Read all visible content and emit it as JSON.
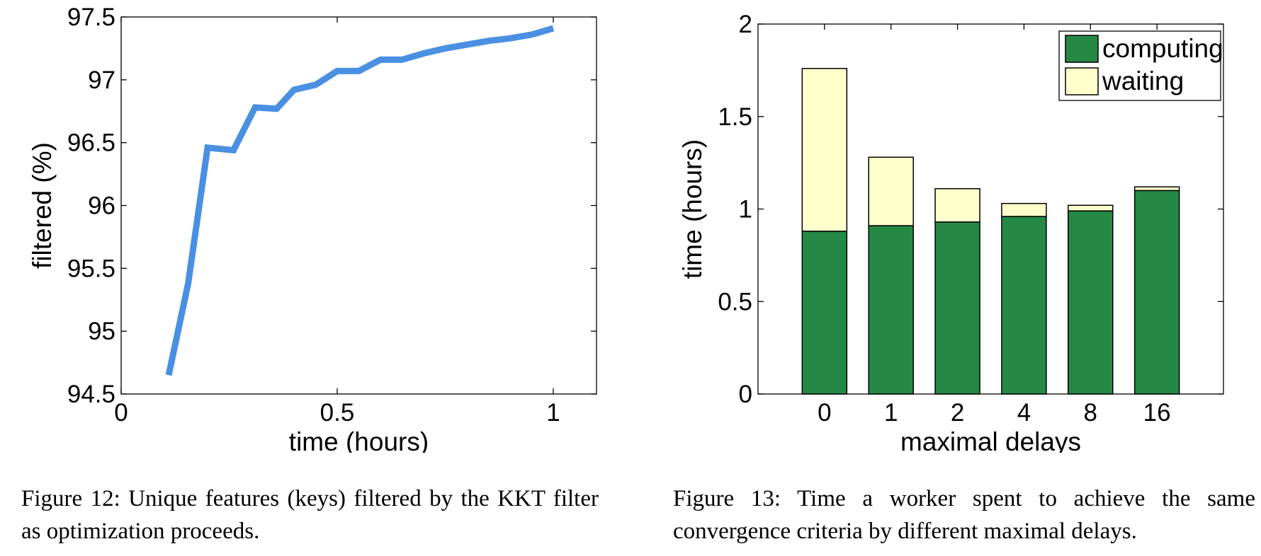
{
  "chart_data": [
    {
      "type": "line",
      "title": "",
      "xlabel": "time (hours)",
      "ylabel": "filtered (%)",
      "xlim": [
        0,
        1.1
      ],
      "ylim": [
        94.5,
        97.5
      ],
      "xticks": [
        0,
        0.5,
        1
      ],
      "xtick_labels": [
        "0",
        "0.5",
        "1"
      ],
      "yticks": [
        94.5,
        95,
        95.5,
        96,
        96.5,
        97,
        97.5
      ],
      "ytick_labels": [
        "94.5",
        "95",
        "95.5",
        "96",
        "96.5",
        "97",
        "97.5"
      ],
      "grid": false,
      "line_color": "#4A90E2",
      "series": [
        {
          "x": [
            0.11,
            0.155,
            0.2,
            0.26,
            0.31,
            0.36,
            0.4,
            0.45,
            0.5,
            0.55,
            0.6,
            0.65,
            0.7,
            0.75,
            0.8,
            0.85,
            0.9,
            0.95,
            1.0
          ],
          "y": [
            94.65,
            95.38,
            96.46,
            96.44,
            96.78,
            96.77,
            96.92,
            96.96,
            97.07,
            97.07,
            97.16,
            97.16,
            97.21,
            97.25,
            97.28,
            97.31,
            97.33,
            97.36,
            97.41
          ]
        }
      ]
    },
    {
      "type": "bar",
      "stacked": true,
      "title": "",
      "xlabel": "maximal delays",
      "ylabel": "time (hours)",
      "categories": [
        "0",
        "1",
        "2",
        "4",
        "8",
        "16"
      ],
      "ylim": [
        0,
        2
      ],
      "yticks": [
        0,
        0.5,
        1,
        1.5,
        2
      ],
      "ytick_labels": [
        "0",
        "0.5",
        "1",
        "1.5",
        "2"
      ],
      "grid": false,
      "legend_position": "top-right",
      "series": [
        {
          "name": "computing",
          "color": "#268845",
          "values": [
            0.88,
            0.91,
            0.93,
            0.96,
            0.99,
            1.1
          ]
        },
        {
          "name": "waiting",
          "color": "#FFFFCC",
          "values": [
            0.88,
            0.37,
            0.18,
            0.07,
            0.03,
            0.02
          ]
        }
      ]
    }
  ],
  "captions": {
    "fig12": "Figure 12:  Unique features (keys) filtered by the KKT filter as optimization proceeds.",
    "fig13": "Figure 13: Time a worker spent to achieve the same convergence criteria by different maximal delays."
  }
}
